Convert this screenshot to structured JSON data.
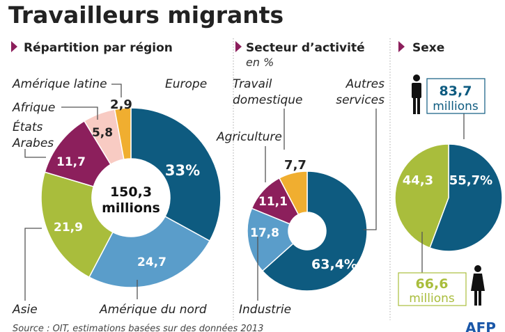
{
  "title": "Travailleurs migrants",
  "source": "Source : OIT, estimations basées sur des données 2013",
  "logo": "AFP",
  "colors": {
    "dark_blue": "#0e5b80",
    "light_blue": "#5a9dca",
    "green": "#a9bd3c",
    "maroon": "#8c1f5c",
    "pink": "#f8cbc3",
    "orange": "#f0ae30",
    "accent": "#8c1f5c"
  },
  "chart_data": [
    {
      "type": "pie",
      "title": "Répartition par région",
      "center_label": [
        "150,3",
        "millions"
      ],
      "categories": [
        "Europe",
        "Amérique du nord",
        "Asie",
        "États Arabes",
        "Afrique",
        "Amérique latine"
      ],
      "values": [
        33,
        24.7,
        21.9,
        11.7,
        5.8,
        2.9
      ],
      "value_labels": [
        "33%",
        "24,7",
        "21,9",
        "11,7",
        "5,8",
        "2,9"
      ],
      "colors": [
        "#0e5b80",
        "#5a9dca",
        "#a9bd3c",
        "#8c1f5c",
        "#f8cbc3",
        "#f0ae30"
      ]
    },
    {
      "type": "pie",
      "title": "Secteur d’activité",
      "subtitle": "en %",
      "categories": [
        "Autres services",
        "Industrie",
        "Agriculture",
        "Travail domestique"
      ],
      "values": [
        63.4,
        17.8,
        11.1,
        7.7
      ],
      "value_labels": [
        "63,4%",
        "17,8",
        "11,1",
        "7,7"
      ],
      "colors": [
        "#0e5b80",
        "#5a9dca",
        "#8c1f5c",
        "#f0ae30"
      ]
    },
    {
      "type": "pie",
      "title": "Sexe",
      "categories": [
        "Hommes",
        "Femmes"
      ],
      "values": [
        55.7,
        44.3
      ],
      "value_labels": [
        "55,7%",
        "44,3"
      ],
      "totals": [
        "83,7",
        "66,6"
      ],
      "unit": "millions",
      "icons": [
        "man-icon",
        "woman-icon"
      ],
      "colors": [
        "#0e5b80",
        "#a9bd3c"
      ]
    }
  ]
}
